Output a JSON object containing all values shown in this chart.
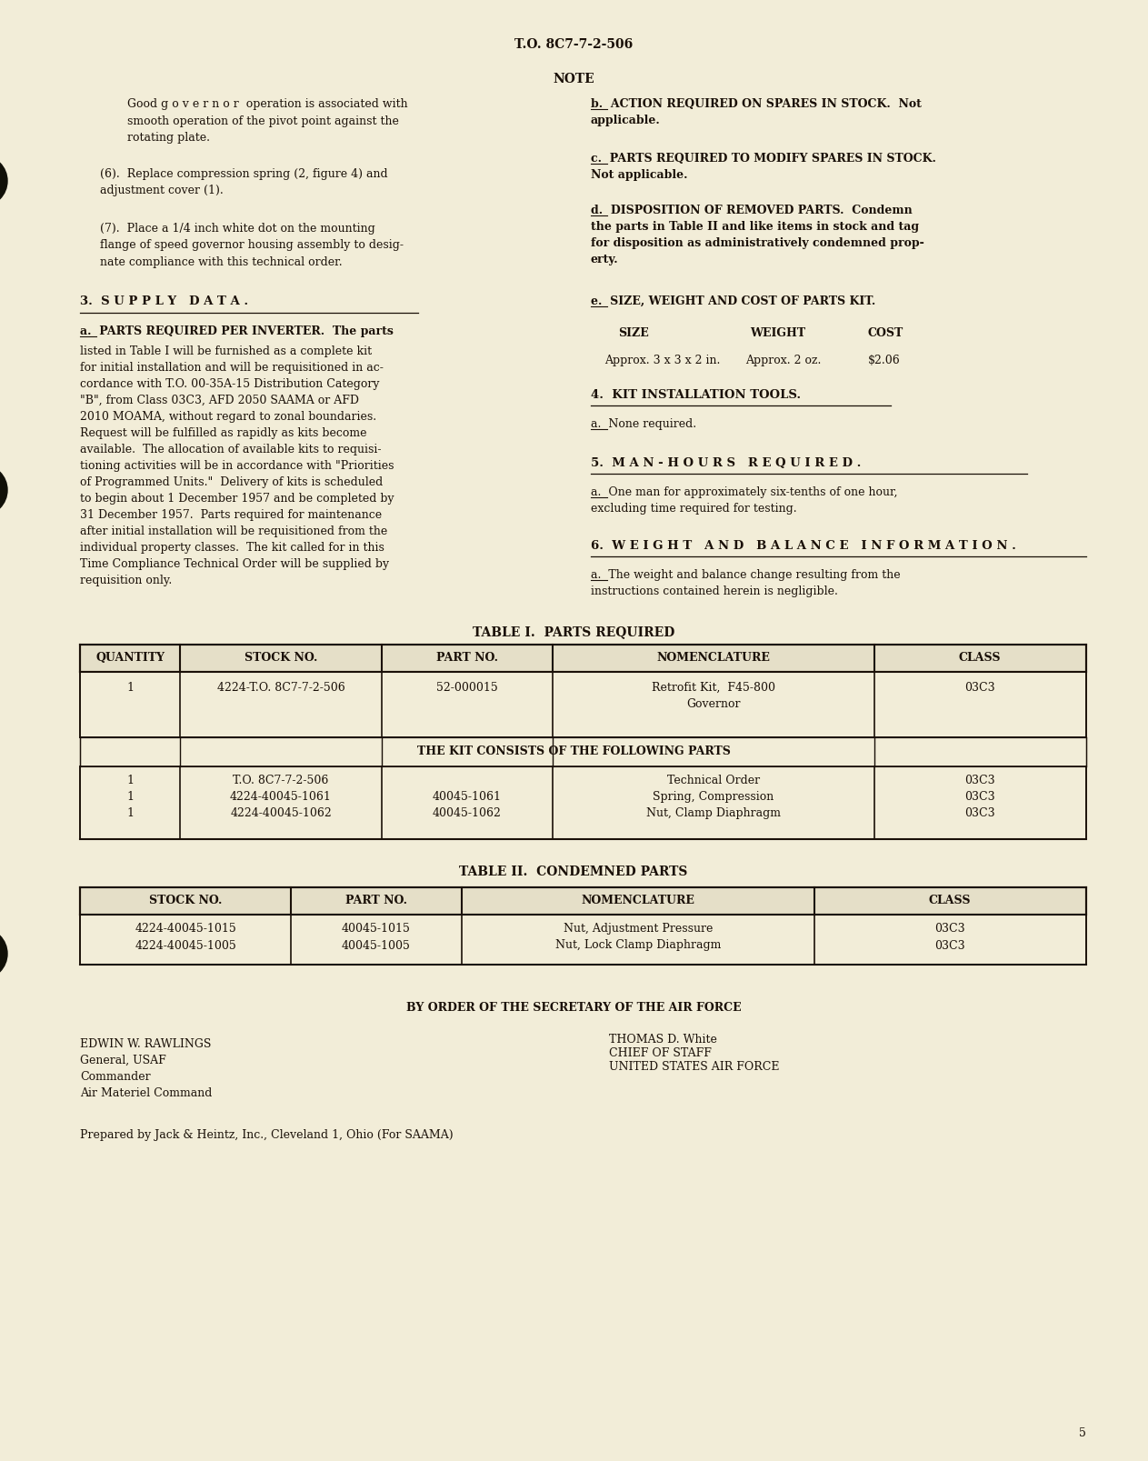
{
  "bg_color": "#f2edd8",
  "text_color": "#1a1008",
  "header": "T.O. 8C7-7-2-506",
  "note_title": "NOTE",
  "note_body": "Good g o v e r n o r  operation is associated with\nsmooth operation of the pivot point against the\nrotating plate.",
  "para6": "(6).  Replace compression spring (2, figure 4) and\nadjustment cover (1).",
  "para7": "(7).  Place a 1/4 inch white dot on the mounting\nflange of speed governor housing assembly to desig-\nnate compliance with this technical order.",
  "supply_heading": "3.  S U P P L Y   D A T A .",
  "supply_a_inline": "a.  PARTS REQUIRED PER INVERTER.  The parts listed in Table I will be furnished as a complete kit for initial installation and will be requisitioned in ac-cordance with T.O. 00-35A-15 Distribution Category \"B\", from Class 03C3, AFD 2050 SAAMA or AFD 2010 MOAMA, without regard to zonal boundaries. Request will be fulfilled as rapidly as kits become available.  The allocation of available kits to requi-sitioning activities will be in accordance with \"Priorities of Programmed Units.\"  Delivery of kits is scheduled to begin about 1 December 1957 and be completed by 31 December 1957.  Parts required for maintenance after initial installation will be requisitioned from the individual property classes.  The kit called for in this Time Compliance Technical Order will be supplied by requisition only.",
  "right_b": "b.  ACTION REQUIRED ON SPARES IN STOCK.  Not\napplicable.",
  "right_c": "c.  PARTS REQUIRED TO MODIFY SPARES IN STOCK.\nNot applicable.",
  "right_d": "d.  DISPOSITION OF REMOVED PARTS.  Condemn\nthe parts in Table II and like items in stock and tag\nfor disposition as administratively condemned prop-\nerty.",
  "right_e": "e.  SIZE, WEIGHT AND COST OF PARTS KIT.",
  "size_label": "SIZE",
  "weight_label": "WEIGHT",
  "cost_label": "COST",
  "size_val": "Approx. 3 x 3 x 2 in.",
  "weight_val": "Approx. 2 oz.",
  "cost_val": "$2.06",
  "kit_head": "4.  KIT INSTALLATION TOOLS.",
  "kit_a": "a.  None required.",
  "manhours_head": "5.  MAN-HOURS REQUIRED.",
  "manhours_a": "a.  One man for approximately six-tenths of one hour,\nexcluding time required for testing.",
  "weight_head": "6.  WEIGHT AND BALANCE INFORMATION.",
  "weight_a": "a.  The weight and balance change resulting from the\ninstructions contained herein is negligible.",
  "table1_title": "TABLE I.  PARTS REQUIRED",
  "table1_headers": [
    "QUANTITY",
    "STOCK NO.",
    "PART NO.",
    "NOMENCLATURE",
    "CLASS"
  ],
  "table2_title": "TABLE II.  CONDEMNED PARTS",
  "table2_headers": [
    "STOCK NO.",
    "PART NO.",
    "NOMENCLATURE",
    "CLASS"
  ],
  "sig_center": "BY ORDER OF THE SECRETARY OF THE AIR FORCE",
  "sig_right_name": "THOMAS D. White",
  "sig_right_title": "CHIEF OF STAFF",
  "sig_right_org": "UNITED STATES AIR FORCE",
  "sig_left": "EDWIN W. RAWLINGS\nGeneral, USAF\nCommander\nAir Materiel Command",
  "footer": "Prepared by Jack & Heintz, Inc., Cleveland 1, Ohio (For SAAMA)",
  "page_num": "5"
}
